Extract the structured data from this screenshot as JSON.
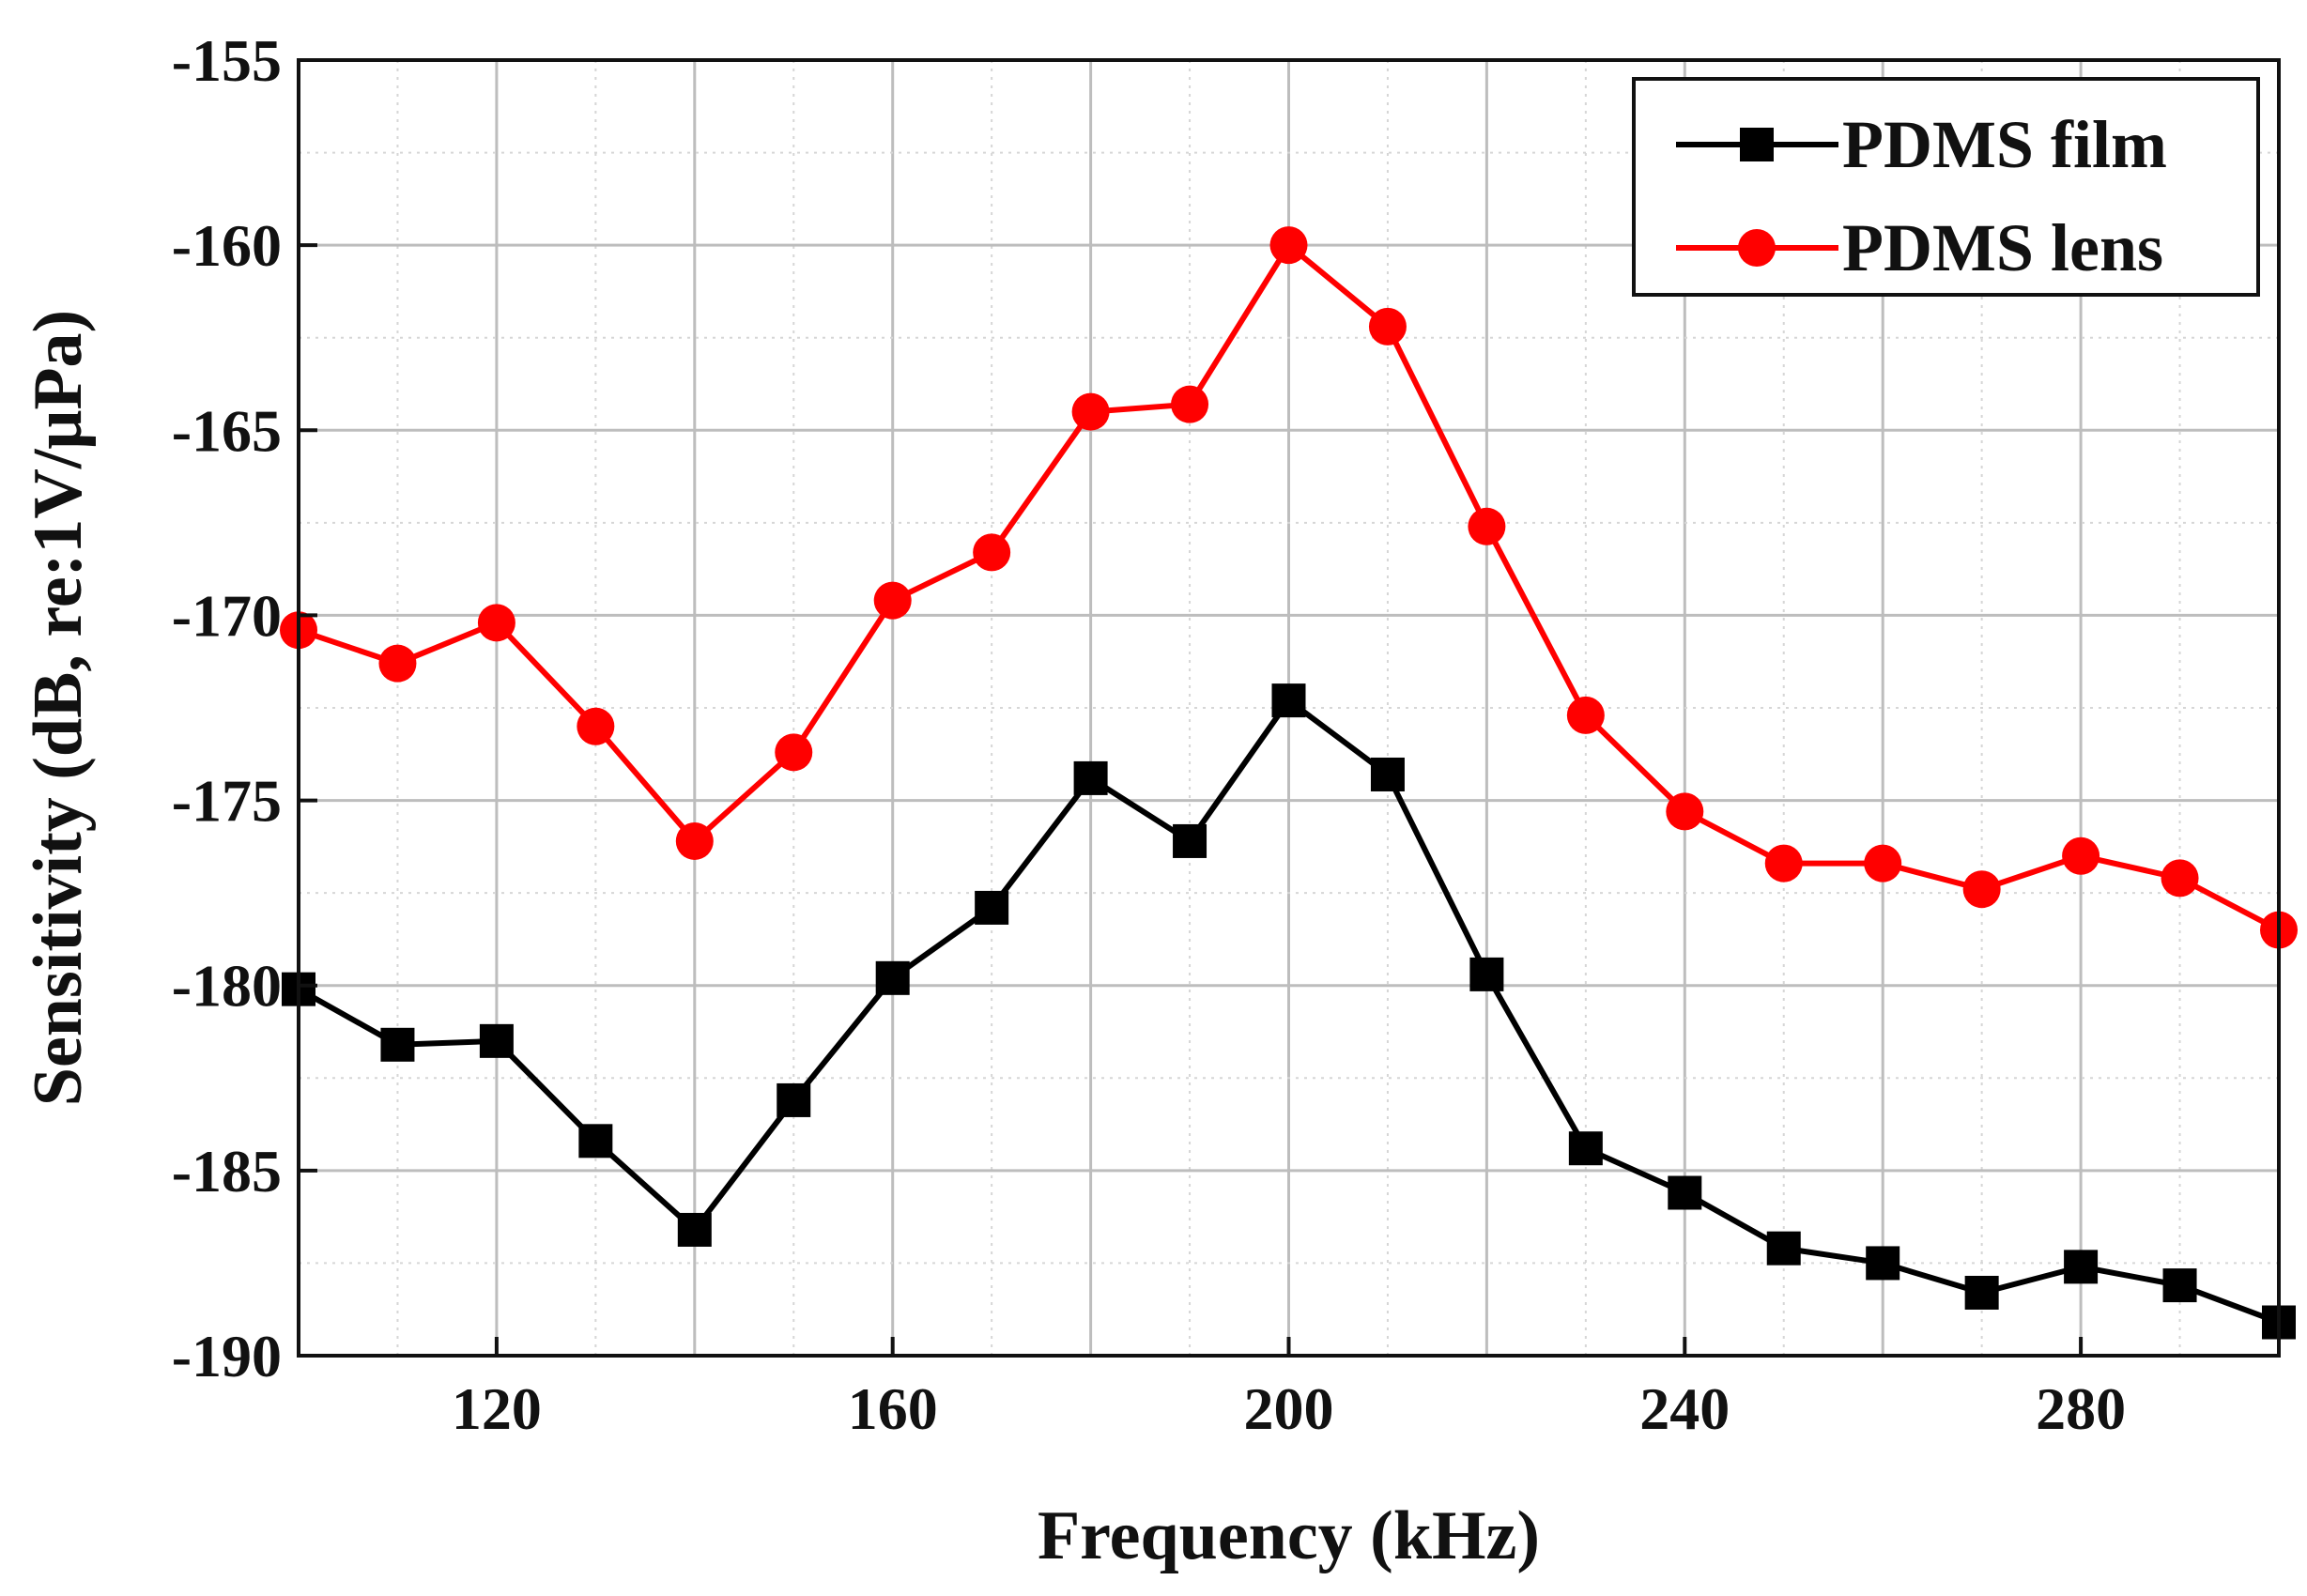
{
  "chart_data": {
    "type": "line",
    "title": "",
    "xlabel": "Frequency (kHz)",
    "ylabel": "Sensitivity (dB, re:1V/μPa)",
    "xlim": [
      100,
      300
    ],
    "ylim": [
      -190,
      -155
    ],
    "xticks": [
      120,
      160,
      200,
      240,
      280
    ],
    "xtick_labels": [
      "120",
      "160",
      "200",
      "240",
      "280"
    ],
    "yticks": [
      -190,
      -185,
      -180,
      -175,
      -170,
      -165,
      -160,
      -155
    ],
    "ytick_labels": [
      "-190",
      "-185",
      "-180",
      "-175",
      "-170",
      "-165",
      "-160",
      "-155"
    ],
    "grid": true,
    "legend_position": "top-right",
    "x": [
      100,
      110,
      120,
      130,
      140,
      150,
      160,
      170,
      180,
      190,
      200,
      210,
      220,
      230,
      240,
      250,
      260,
      270,
      280,
      290,
      300
    ],
    "series": [
      {
        "name": "PDMS film",
        "color": "#000000",
        "marker": "square",
        "values": [
          -180.1,
          -181.6,
          -181.5,
          -184.2,
          -186.6,
          -183.1,
          -179.8,
          -177.9,
          -174.4,
          -176.1,
          -172.3,
          -174.3,
          -179.7,
          -184.4,
          -185.6,
          -187.1,
          -187.5,
          -188.3,
          -187.6,
          -188.1,
          -189.1
        ]
      },
      {
        "name": "PDMS lens",
        "color": "#ff0000",
        "marker": "circle",
        "values": [
          -170.4,
          -171.3,
          -170.2,
          -173.0,
          -176.1,
          -173.7,
          -169.6,
          -168.3,
          -164.5,
          -164.3,
          -160.0,
          -162.2,
          -167.6,
          -172.7,
          -175.3,
          -176.7,
          -176.7,
          -177.4,
          -176.5,
          -177.1,
          -178.5
        ]
      }
    ]
  }
}
